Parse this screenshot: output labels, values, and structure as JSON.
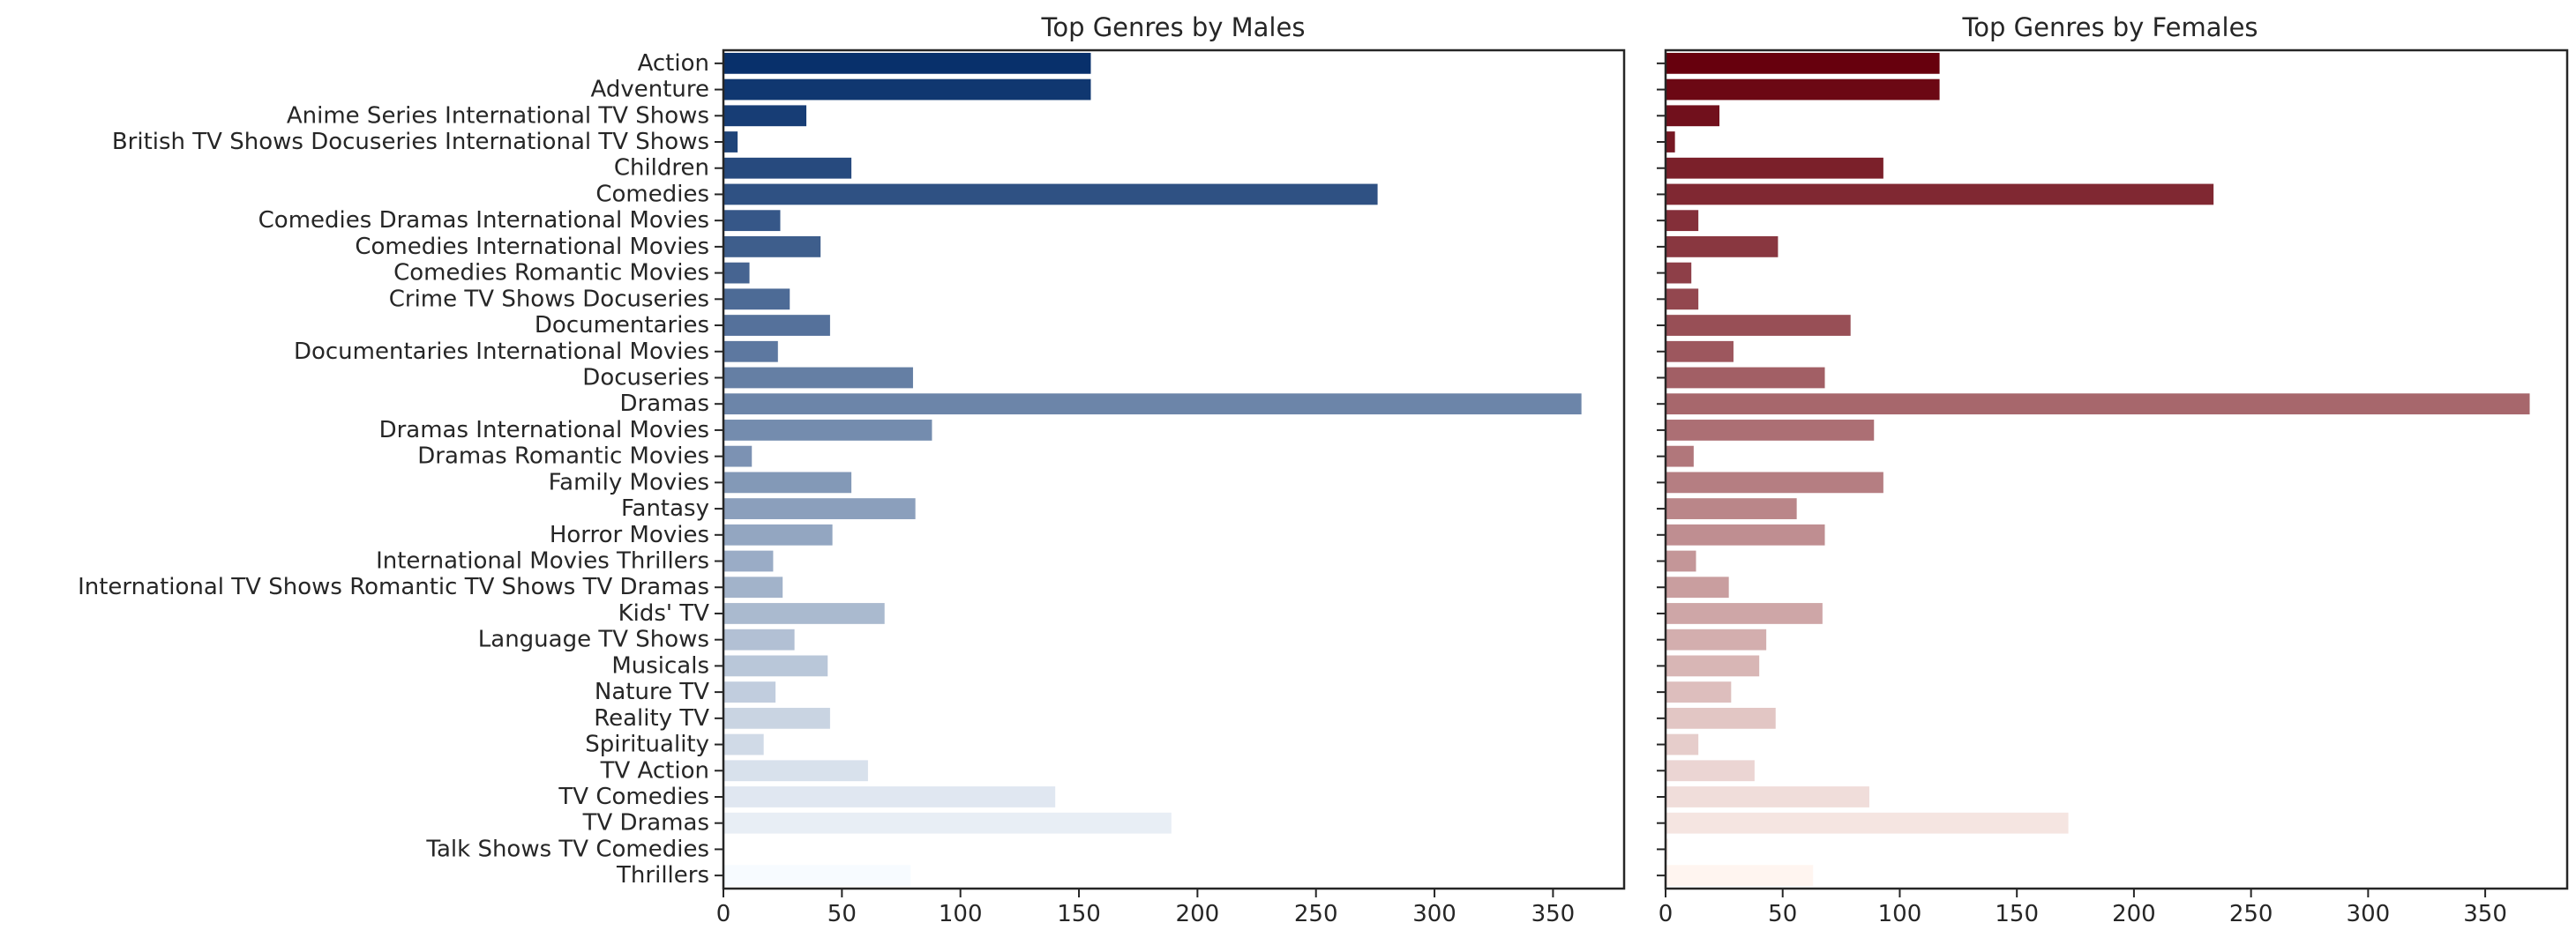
{
  "chart_data": [
    {
      "type": "bar",
      "orientation": "horizontal",
      "title": "Top Genres by Males",
      "xlabel": "",
      "ylabel": "",
      "xlim": [
        0,
        380
      ],
      "xticks": [
        0,
        50,
        100,
        150,
        200,
        250,
        300,
        350
      ],
      "palette": "Blues_r",
      "color_dark": "#08306b",
      "color_light": "#f7fbff",
      "grid": false,
      "categories": [
        "Action",
        "Adventure",
        "Anime Series International TV Shows",
        "British TV Shows Docuseries International TV Shows",
        "Children",
        "Comedies",
        "Comedies Dramas International Movies",
        "Comedies International Movies",
        "Comedies Romantic Movies",
        "Crime TV Shows Docuseries",
        "Documentaries",
        "Documentaries International Movies",
        "Docuseries",
        "Dramas",
        "Dramas International Movies",
        "Dramas Romantic Movies",
        "Family Movies",
        "Fantasy",
        "Horror Movies",
        "International Movies Thrillers",
        "International TV Shows Romantic TV Shows TV Dramas",
        "Kids' TV",
        "Language TV Shows",
        "Musicals",
        "Nature TV",
        "Reality TV",
        "Spirituality",
        "TV Action",
        "TV Comedies",
        "TV Dramas",
        "Talk Shows TV Comedies",
        "Thrillers"
      ],
      "values": [
        155,
        155,
        35,
        6,
        54,
        276,
        24,
        41,
        11,
        28,
        45,
        23,
        80,
        362,
        88,
        12,
        54,
        81,
        46,
        21,
        25,
        68,
        30,
        44,
        22,
        45,
        17,
        61,
        140,
        189,
        0,
        79
      ]
    },
    {
      "type": "bar",
      "orientation": "horizontal",
      "title": "Top Genres by Females",
      "xlabel": "",
      "ylabel": "",
      "xlim": [
        0,
        385
      ],
      "xticks": [
        0,
        50,
        100,
        150,
        200,
        250,
        300,
        350
      ],
      "shared_y": true,
      "palette": "Reds_r",
      "color_dark": "#67000d",
      "color_light": "#fff5f0",
      "grid": false,
      "categories": [
        "Action",
        "Adventure",
        "Anime Series International TV Shows",
        "British TV Shows Docuseries International TV Shows",
        "Children",
        "Comedies",
        "Comedies Dramas International Movies",
        "Comedies International Movies",
        "Comedies Romantic Movies",
        "Crime TV Shows Docuseries",
        "Documentaries",
        "Documentaries International Movies",
        "Docuseries",
        "Dramas",
        "Dramas International Movies",
        "Dramas Romantic Movies",
        "Family Movies",
        "Fantasy",
        "Horror Movies",
        "International Movies Thrillers",
        "International TV Shows Romantic TV Shows TV Dramas",
        "Kids' TV",
        "Language TV Shows",
        "Musicals",
        "Nature TV",
        "Reality TV",
        "Spirituality",
        "TV Action",
        "TV Comedies",
        "TV Dramas",
        "Talk Shows TV Comedies",
        "Thrillers"
      ],
      "values": [
        117,
        117,
        23,
        4,
        93,
        234,
        14,
        48,
        11,
        14,
        79,
        29,
        68,
        369,
        89,
        12,
        93,
        56,
        68,
        13,
        27,
        67,
        43,
        40,
        28,
        47,
        14,
        38,
        87,
        172,
        1,
        63
      ]
    }
  ]
}
